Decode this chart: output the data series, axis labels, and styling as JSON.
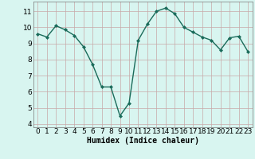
{
  "x": [
    0,
    1,
    2,
    3,
    4,
    5,
    6,
    7,
    8,
    9,
    10,
    11,
    12,
    13,
    14,
    15,
    16,
    17,
    18,
    19,
    20,
    21,
    22,
    23
  ],
  "y": [
    9.6,
    9.4,
    10.1,
    9.85,
    9.5,
    8.8,
    7.7,
    6.3,
    6.3,
    4.5,
    5.3,
    9.2,
    10.2,
    11.0,
    11.2,
    10.85,
    10.0,
    9.7,
    9.4,
    9.2,
    8.6,
    9.35,
    9.45,
    8.5
  ],
  "line_color": "#1a6b5a",
  "marker": "D",
  "marker_size": 2.0,
  "linewidth": 1.0,
  "xlabel": "Humidex (Indice chaleur)",
  "xlim": [
    -0.5,
    23.5
  ],
  "ylim": [
    3.8,
    11.6
  ],
  "yticks": [
    4,
    5,
    6,
    7,
    8,
    9,
    10,
    11
  ],
  "xticks": [
    0,
    1,
    2,
    3,
    4,
    5,
    6,
    7,
    8,
    9,
    10,
    11,
    12,
    13,
    14,
    15,
    16,
    17,
    18,
    19,
    20,
    21,
    22,
    23
  ],
  "bg_color": "#d8f5f0",
  "grid_color": "#c8a8a8",
  "xlabel_fontsize": 7,
  "tick_fontsize": 6.5
}
